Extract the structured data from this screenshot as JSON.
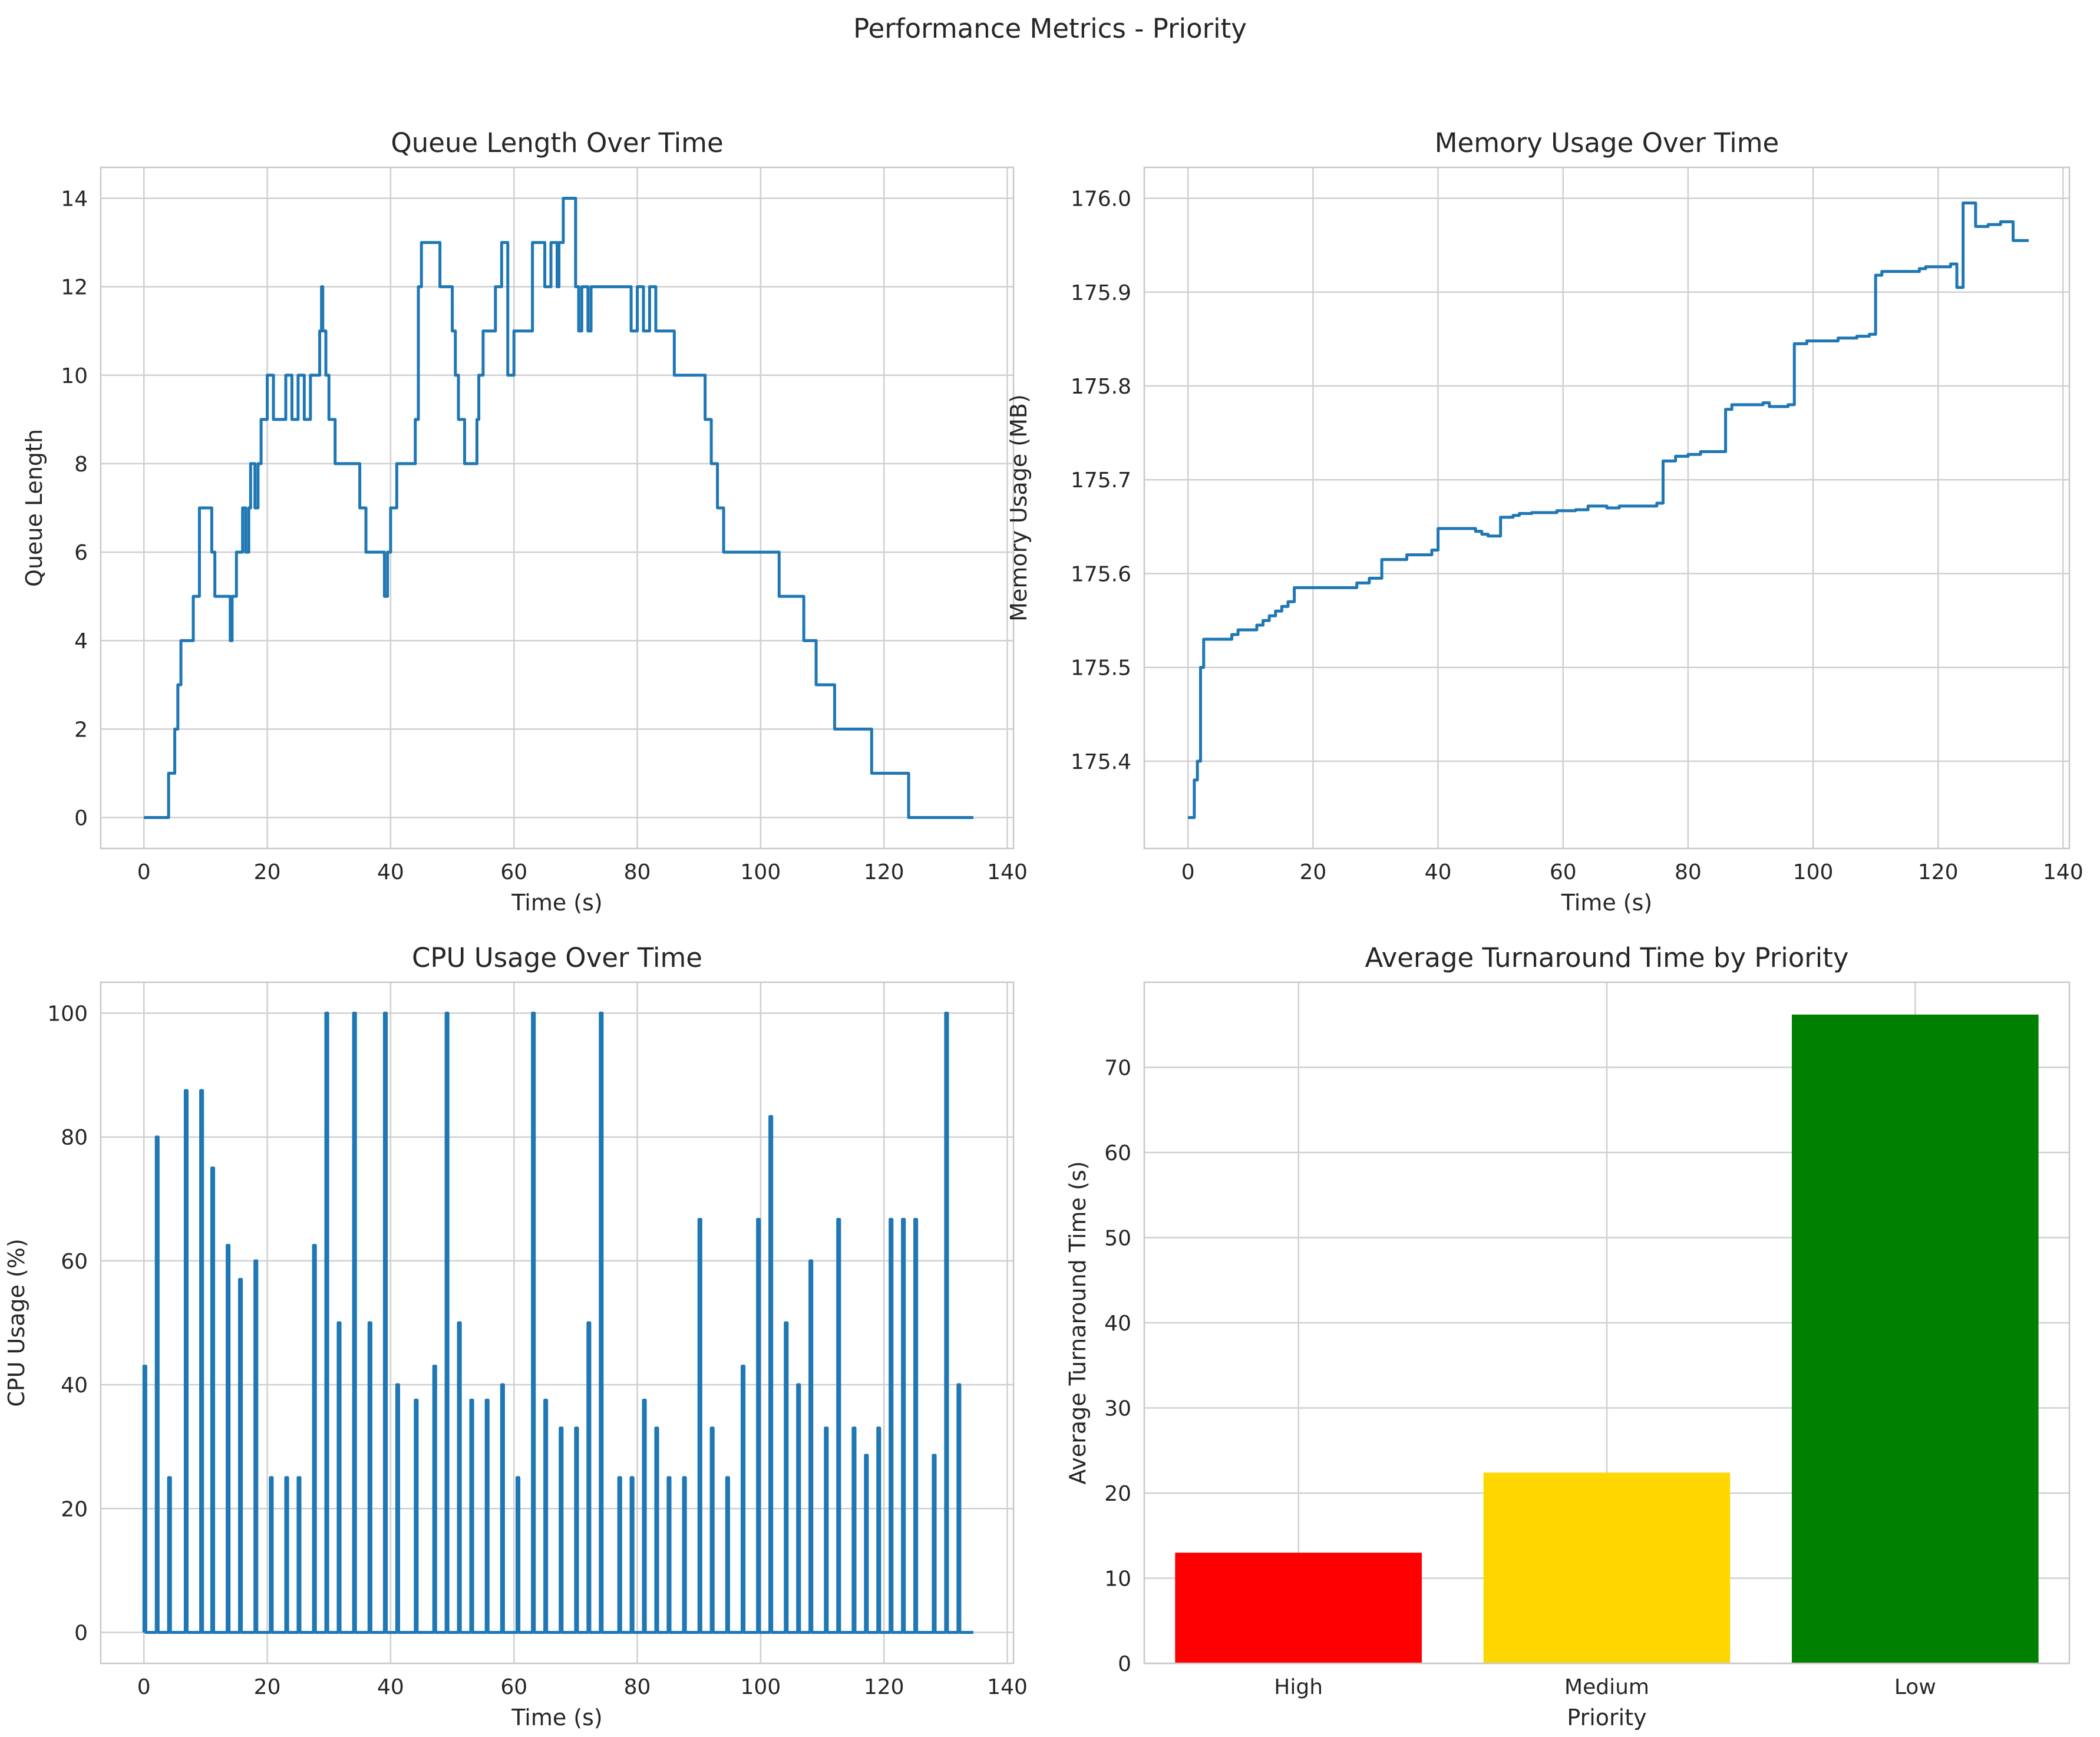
{
  "figure": {
    "title": "Performance Metrics - Priority"
  },
  "chart_data": [
    {
      "id": "queue",
      "type": "line",
      "title": "Queue Length Over Time",
      "xlabel": "Time (s)",
      "ylabel": "Queue Length",
      "xlim": [
        -7,
        141
      ],
      "ylim": [
        -0.7,
        14.7
      ],
      "xticks": [
        0,
        20,
        40,
        60,
        80,
        100,
        120,
        140
      ],
      "yticks": [
        0,
        2,
        4,
        6,
        8,
        10,
        12,
        14
      ],
      "grid": true,
      "step": true,
      "x": [
        0,
        4,
        5,
        5.5,
        6,
        8,
        9,
        11,
        11.5,
        14,
        14.3,
        15,
        16,
        16.5,
        17,
        17.3,
        18,
        18.5,
        19,
        20,
        21,
        23,
        24,
        25,
        26,
        27,
        28.5,
        28.8,
        29,
        29.5,
        30,
        31,
        35,
        36,
        39,
        39.5,
        40,
        41,
        44,
        44.5,
        45,
        48,
        50,
        50.5,
        51,
        52,
        54,
        54.3,
        55,
        57,
        58,
        59,
        60,
        63,
        65,
        66,
        67,
        67.3,
        68,
        70,
        70.5,
        71,
        72,
        72.5,
        73,
        79,
        80,
        81,
        82,
        83,
        86,
        91,
        92,
        93,
        94,
        103,
        107,
        109,
        112,
        118,
        124,
        134.5
      ],
      "y": [
        0,
        1,
        2,
        3,
        4,
        5,
        7,
        6,
        5,
        4,
        5,
        6,
        7,
        6,
        7,
        8,
        7,
        8,
        9,
        10,
        9,
        10,
        9,
        10,
        9,
        10,
        11,
        12,
        11,
        10,
        9,
        8,
        7,
        6,
        5,
        6,
        7,
        8,
        9,
        12,
        13,
        12,
        11,
        10,
        9,
        8,
        9,
        10,
        11,
        12,
        13,
        10,
        11,
        13,
        12,
        13,
        12,
        13,
        14,
        12,
        11,
        12,
        11,
        12,
        12,
        11,
        12,
        11,
        12,
        11,
        10,
        9,
        8,
        7,
        6,
        5,
        4,
        3,
        2,
        1,
        0,
        0
      ]
    },
    {
      "id": "memory",
      "type": "line",
      "title": "Memory Usage Over Time",
      "xlabel": "Time (s)",
      "ylabel": "Memory Usage (MB)",
      "xlim": [
        -7,
        141
      ],
      "ylim": [
        175.307,
        176.033
      ],
      "xticks": [
        0,
        20,
        40,
        60,
        80,
        100,
        120,
        140
      ],
      "yticks": [
        175.4,
        175.5,
        175.6,
        175.7,
        175.8,
        175.9,
        176.0
      ],
      "yticklabels": [
        "175.4",
        "175.5",
        "175.6",
        "175.7",
        "175.8",
        "175.9",
        "176.0"
      ],
      "grid": true,
      "step": true,
      "x": [
        0,
        1,
        1.5,
        2,
        2.5,
        7,
        8,
        11,
        12,
        13,
        14,
        15,
        16,
        17,
        27,
        28,
        29,
        31,
        35,
        39,
        40,
        46,
        47,
        48,
        50,
        52,
        53,
        55,
        59,
        62,
        64,
        67,
        69,
        75,
        76,
        78,
        80,
        82,
        86,
        87,
        92,
        93,
        96,
        97,
        99,
        104,
        107,
        109,
        110,
        111,
        117,
        118,
        122,
        123,
        124,
        125,
        126,
        128,
        130,
        132,
        134.5
      ],
      "y": [
        175.34,
        175.38,
        175.4,
        175.5,
        175.53,
        175.535,
        175.54,
        175.545,
        175.55,
        175.555,
        175.56,
        175.565,
        175.57,
        175.585,
        175.59,
        175.59,
        175.595,
        175.615,
        175.62,
        175.625,
        175.648,
        175.645,
        175.642,
        175.64,
        175.66,
        175.662,
        175.664,
        175.665,
        175.667,
        175.668,
        175.672,
        175.67,
        175.672,
        175.675,
        175.72,
        175.725,
        175.727,
        175.73,
        175.775,
        175.78,
        175.782,
        175.778,
        175.78,
        175.845,
        175.848,
        175.851,
        175.853,
        175.855,
        175.918,
        175.922,
        175.925,
        175.927,
        175.93,
        175.905,
        175.995,
        175.995,
        175.97,
        175.972,
        175.975,
        175.955,
        175.955
      ]
    },
    {
      "id": "cpu",
      "type": "line",
      "title": "CPU Usage Over Time",
      "xlabel": "Time (s)",
      "ylabel": "CPU Usage (%)",
      "xlim": [
        -7,
        141
      ],
      "ylim": [
        -5,
        105
      ],
      "xticks": [
        0,
        20,
        40,
        60,
        80,
        100,
        120,
        140
      ],
      "yticks": [
        0,
        20,
        40,
        60,
        80,
        100
      ],
      "grid": true,
      "baseline": 0,
      "x_end": 134.5,
      "spike_width": 0.3,
      "spikes": [
        [
          0,
          43
        ],
        [
          2,
          80
        ],
        [
          4,
          25
        ],
        [
          6.7,
          87.5
        ],
        [
          9.2,
          87.5
        ],
        [
          11,
          75
        ],
        [
          13.5,
          62.5
        ],
        [
          15.5,
          57
        ],
        [
          18,
          60
        ],
        [
          20.5,
          25
        ],
        [
          23,
          25
        ],
        [
          25,
          25
        ],
        [
          27.5,
          62.5
        ],
        [
          29.5,
          100
        ],
        [
          31.5,
          50
        ],
        [
          34,
          100
        ],
        [
          36.5,
          50
        ],
        [
          39,
          100
        ],
        [
          41,
          40
        ],
        [
          44,
          37.5
        ],
        [
          47,
          43
        ],
        [
          49,
          100
        ],
        [
          51,
          50
        ],
        [
          53,
          37.5
        ],
        [
          55.5,
          37.5
        ],
        [
          58,
          40
        ],
        [
          60.5,
          25
        ],
        [
          63,
          100
        ],
        [
          65,
          37.5
        ],
        [
          67.5,
          33
        ],
        [
          70,
          33
        ],
        [
          72,
          50
        ],
        [
          74,
          100
        ],
        [
          77,
          25
        ],
        [
          79,
          25
        ],
        [
          81,
          37.5
        ],
        [
          83,
          33
        ],
        [
          85,
          25
        ],
        [
          87.5,
          25
        ],
        [
          90,
          66.7
        ],
        [
          92,
          33
        ],
        [
          94.5,
          25
        ],
        [
          97,
          43
        ],
        [
          99.5,
          66.7
        ],
        [
          101.5,
          83.3
        ],
        [
          104,
          50
        ],
        [
          106,
          40
        ],
        [
          108,
          60
        ],
        [
          110.5,
          33
        ],
        [
          112.5,
          66.7
        ],
        [
          115,
          33
        ],
        [
          117,
          28.6
        ],
        [
          119,
          33
        ],
        [
          121,
          66.7
        ],
        [
          123,
          66.7
        ],
        [
          125,
          66.7
        ],
        [
          128,
          28.6
        ],
        [
          130,
          100
        ],
        [
          132,
          40
        ]
      ]
    },
    {
      "id": "turnaround",
      "type": "bar",
      "title": "Average Turnaround Time by Priority",
      "xlabel": "Priority",
      "ylabel": "Average Turnaround Time (s)",
      "categories": [
        "High",
        "Medium",
        "Low"
      ],
      "values": [
        13.0,
        22.4,
        76.2
      ],
      "colors": [
        "#ff0000",
        "#ffd700",
        "#008000"
      ],
      "ylim": [
        0,
        80
      ],
      "yticks": [
        0,
        10,
        20,
        30,
        40,
        50,
        60,
        70
      ],
      "grid": true
    }
  ]
}
